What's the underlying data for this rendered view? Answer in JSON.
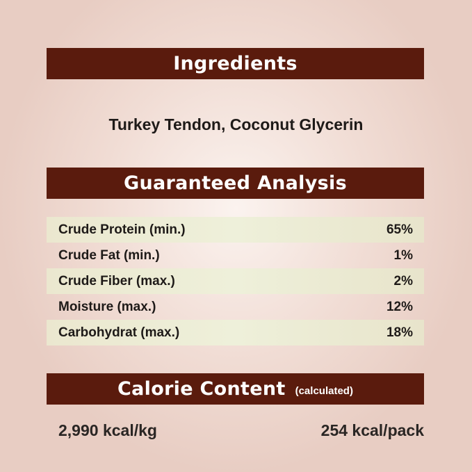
{
  "ingredients": {
    "title": "Ingredients",
    "text": "Turkey Tendon, Coconut Glycerin"
  },
  "analysis": {
    "title": "Guaranteed Analysis",
    "rows": [
      {
        "label": "Crude Protein (min.)",
        "value": "65%"
      },
      {
        "label": "Crude Fat (min.)",
        "value": "1%"
      },
      {
        "label": "Crude Fiber (max.)",
        "value": "2%"
      },
      {
        "label": "Moisture (max.)",
        "value": "12%"
      },
      {
        "label": "Carbohydrat (max.)",
        "value": "18%"
      }
    ]
  },
  "calorie": {
    "title": "Calorie Content",
    "subtitle": "(calculated)",
    "per_kg": "2,990 kcal/kg",
    "per_pack": "254 kcal/pack"
  },
  "colors": {
    "banner": "#5a1b0d",
    "background": "#ecd4cc",
    "row_shade": "#eceacf"
  }
}
